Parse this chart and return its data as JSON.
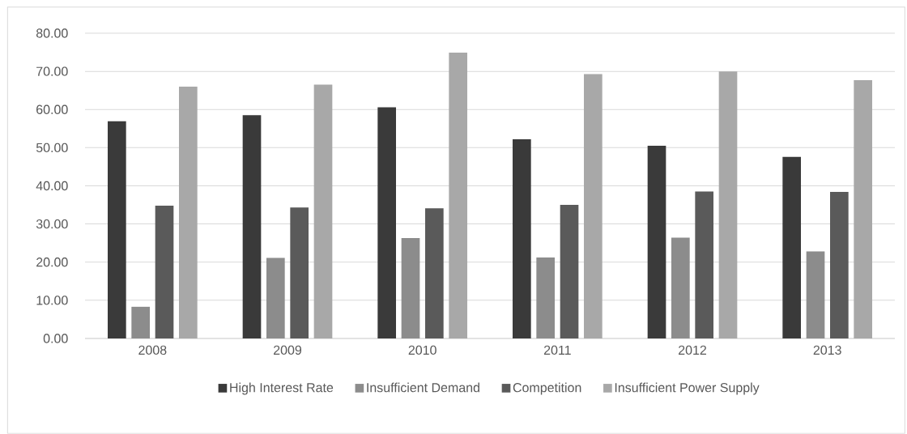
{
  "chart_data": {
    "type": "bar",
    "categories": [
      "2008",
      "2009",
      "2010",
      "2011",
      "2012",
      "2013"
    ],
    "series": [
      {
        "name": "High Interest Rate",
        "color": "#3a3a3a",
        "values": [
          56.9,
          58.5,
          60.6,
          52.2,
          50.5,
          47.6
        ]
      },
      {
        "name": "Insufficient Demand",
        "color": "#8c8c8c",
        "values": [
          8.3,
          21.1,
          26.3,
          21.2,
          26.4,
          22.8
        ]
      },
      {
        "name": "Competition",
        "color": "#5a5a5a",
        "values": [
          34.8,
          34.3,
          34.1,
          35.0,
          38.5,
          38.4
        ]
      },
      {
        "name": "Insufficient Power Supply",
        "color": "#a8a8a8",
        "values": [
          66.0,
          66.5,
          74.9,
          69.3,
          70.0,
          67.7
        ]
      }
    ],
    "ylim": [
      0,
      80
    ],
    "yticks": [
      {
        "value": 0,
        "label": "0.00"
      },
      {
        "value": 10,
        "label": "10.00"
      },
      {
        "value": 20,
        "label": "20.00"
      },
      {
        "value": 30,
        "label": "30.00"
      },
      {
        "value": 40,
        "label": "40.00"
      },
      {
        "value": 50,
        "label": "50.00"
      },
      {
        "value": 60,
        "label": "60.00"
      },
      {
        "value": 70,
        "label": "70.00"
      },
      {
        "value": 80,
        "label": "80.00"
      }
    ],
    "grid": "y",
    "legend": "bottom"
  }
}
